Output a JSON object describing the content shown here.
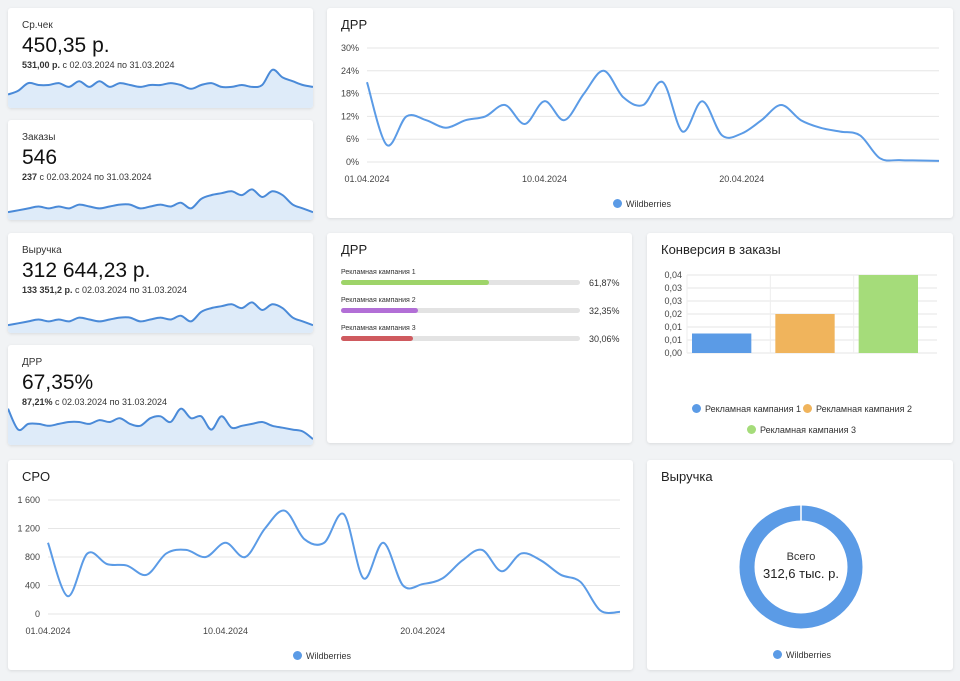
{
  "kpis": [
    {
      "label": "Ср.чек",
      "value": "450,35 р.",
      "sub_bold": "531,00 р.",
      "sub_rest": " с 02.03.2024 по 31.03.2024",
      "spark": [
        0.25,
        0.35,
        0.55,
        0.5,
        0.5,
        0.55,
        0.45,
        0.6,
        0.45,
        0.6,
        0.45,
        0.55,
        0.5,
        0.45,
        0.5,
        0.5,
        0.55,
        0.5,
        0.4,
        0.5,
        0.55,
        0.45,
        0.45,
        0.5,
        0.45,
        0.5,
        0.9,
        0.7,
        0.6,
        0.5,
        0.45
      ]
    },
    {
      "label": "Заказы",
      "value": "546",
      "sub_bold": "237",
      "sub_rest": " с 02.03.2024 по 31.03.2024",
      "spark": [
        0.1,
        0.15,
        0.2,
        0.25,
        0.2,
        0.25,
        0.2,
        0.3,
        0.25,
        0.2,
        0.25,
        0.3,
        0.3,
        0.2,
        0.25,
        0.3,
        0.25,
        0.35,
        0.2,
        0.45,
        0.55,
        0.6,
        0.65,
        0.55,
        0.7,
        0.5,
        0.65,
        0.55,
        0.3,
        0.2,
        0.1
      ]
    },
    {
      "label": "Выручка",
      "value": "312 644,23 р.",
      "sub_bold": "133 351,2 р.",
      "sub_rest": " с 02.03.2024 по 31.03.2024",
      "spark": [
        0.1,
        0.15,
        0.2,
        0.25,
        0.2,
        0.25,
        0.2,
        0.3,
        0.25,
        0.2,
        0.25,
        0.3,
        0.3,
        0.2,
        0.25,
        0.3,
        0.25,
        0.35,
        0.2,
        0.45,
        0.55,
        0.6,
        0.65,
        0.55,
        0.7,
        0.5,
        0.65,
        0.55,
        0.3,
        0.2,
        0.1
      ]
    },
    {
      "label": "ДРР",
      "value": "67,35%",
      "sub_bold": "87,21%",
      "sub_rest": " с 02.03.2024 по 31.03.2024",
      "spark": [
        0.85,
        0.3,
        0.45,
        0.45,
        0.4,
        0.45,
        0.5,
        0.5,
        0.45,
        0.55,
        0.5,
        0.6,
        0.45,
        0.4,
        0.6,
        0.65,
        0.5,
        0.85,
        0.6,
        0.65,
        0.3,
        0.65,
        0.35,
        0.4,
        0.45,
        0.5,
        0.4,
        0.35,
        0.3,
        0.25,
        0.05
      ]
    }
  ],
  "drr_chart": {
    "title": "ДРР",
    "legend": "Wildberries",
    "y_ticks": [
      "30%",
      "24%",
      "18%",
      "12%",
      "6%",
      "0%"
    ],
    "x_ticks": [
      "01.04.2024",
      "10.04.2024",
      "20.04.2024"
    ],
    "chart_data": {
      "type": "line",
      "ylim": [
        0,
        30
      ],
      "x": [
        "01.04",
        "02.04",
        "03.04",
        "04.04",
        "05.04",
        "06.04",
        "07.04",
        "08.04",
        "09.04",
        "10.04",
        "11.04",
        "12.04",
        "13.04",
        "14.04",
        "15.04",
        "16.04",
        "17.04",
        "18.04",
        "19.04",
        "20.04",
        "21.04",
        "22.04",
        "23.04",
        "24.04",
        "25.04",
        "26.04",
        "27.04",
        "28.04",
        "29.04",
        "30.04"
      ],
      "series": [
        {
          "name": "Wildberries",
          "values": [
            21,
            4.5,
            12,
            11,
            9,
            11,
            12,
            15,
            10,
            16,
            11,
            18,
            24,
            17,
            15,
            21,
            8,
            16,
            7,
            7.5,
            11,
            15,
            11,
            9,
            8,
            7,
            1,
            0.5,
            0.4,
            0.3
          ]
        }
      ]
    }
  },
  "drr_campaigns": {
    "title": "ДРР",
    "items": [
      {
        "label": "Рекламная кампания 1",
        "pct": "61,87%",
        "value": 61.87,
        "color": "#9ed469"
      },
      {
        "label": "Рекламная кампания 2",
        "pct": "32,35%",
        "value": 32.35,
        "color": "#b26fd6"
      },
      {
        "label": "Рекламная кампания 3",
        "pct": "30,06%",
        "value": 30.06,
        "color": "#cf5a5f"
      }
    ]
  },
  "conversion": {
    "title": "Конверсия в заказы",
    "y_ticks": [
      "0,04",
      "0,03",
      "0,03",
      "0,02",
      "0,01",
      "0,01",
      "0,00"
    ],
    "chart_data": {
      "type": "bar",
      "ylim": [
        0,
        0.04
      ],
      "categories": [
        "Рекламная кампания 1",
        "Рекламная кампания 2",
        "Рекламная кампания 3"
      ],
      "values": [
        0.01,
        0.02,
        0.04
      ],
      "colors": [
        "#5b9be6",
        "#f0b45c",
        "#a5dc7a"
      ]
    },
    "legend": [
      "Рекламная кампания 1",
      "Рекламная кампания 2",
      "Рекламная кампания 3"
    ]
  },
  "cpo_chart": {
    "title": "CPO",
    "legend": "Wildberries",
    "y_ticks": [
      "1 600",
      "1 200",
      "800",
      "400",
      "0"
    ],
    "x_ticks": [
      "01.04.2024",
      "10.04.2024",
      "20.04.2024"
    ],
    "chart_data": {
      "type": "line",
      "ylim": [
        0,
        1600
      ],
      "x": [
        "01.04",
        "02.04",
        "03.04",
        "04.04",
        "05.04",
        "06.04",
        "07.04",
        "08.04",
        "09.04",
        "10.04",
        "11.04",
        "12.04",
        "13.04",
        "14.04",
        "15.04",
        "16.04",
        "17.04",
        "18.04",
        "19.04",
        "20.04",
        "21.04",
        "22.04",
        "23.04",
        "24.04",
        "25.04",
        "26.04",
        "27.04",
        "28.04",
        "29.04",
        "30.04"
      ],
      "series": [
        {
          "name": "Wildberries",
          "values": [
            1000,
            250,
            850,
            700,
            680,
            550,
            850,
            900,
            800,
            1000,
            800,
            1200,
            1450,
            1050,
            1000,
            1400,
            500,
            1000,
            400,
            420,
            500,
            750,
            900,
            600,
            850,
            750,
            550,
            450,
            50,
            30
          ]
        }
      ]
    }
  },
  "revenue_donut": {
    "title": "Выручка",
    "center_label": "Всего",
    "center_value": "312,6 тыс. р.",
    "legend": "Wildberries",
    "chart_data": {
      "type": "pie",
      "series": [
        {
          "name": "Wildberries",
          "values": [
            312.6
          ]
        }
      ]
    }
  }
}
